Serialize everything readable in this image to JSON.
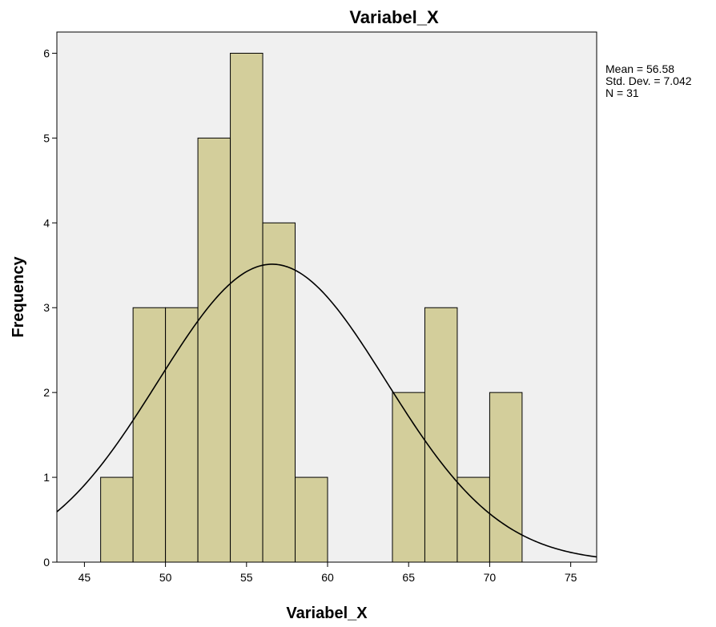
{
  "chart_data": {
    "type": "bar",
    "title": "Variabel_X",
    "xlabel": "Variabel_X",
    "ylabel": "Frequency",
    "xlim": [
      43.3,
      76.6
    ],
    "ylim": [
      0,
      6.25
    ],
    "x_ticks": [
      45,
      50,
      55,
      60,
      65,
      70,
      75
    ],
    "y_ticks": [
      0,
      1,
      2,
      3,
      4,
      5,
      6
    ],
    "bins": [
      {
        "start": 46,
        "end": 48,
        "value": 1
      },
      {
        "start": 48,
        "end": 50,
        "value": 3
      },
      {
        "start": 50,
        "end": 52,
        "value": 3
      },
      {
        "start": 52,
        "end": 54,
        "value": 5
      },
      {
        "start": 54,
        "end": 56,
        "value": 6
      },
      {
        "start": 56,
        "end": 58,
        "value": 4
      },
      {
        "start": 58,
        "end": 60,
        "value": 1
      },
      {
        "start": 64,
        "end": 66,
        "value": 2
      },
      {
        "start": 66,
        "end": 68,
        "value": 3
      },
      {
        "start": 68,
        "end": 70,
        "value": 1
      },
      {
        "start": 70,
        "end": 72,
        "value": 2
      }
    ],
    "normal_curve": {
      "mean": 56.58,
      "std": 7.042,
      "n": 31,
      "bin_width": 2
    },
    "stats": [
      "Mean = 56.58",
      "Std. Dev. = 7.042",
      "N = 31"
    ],
    "colors": {
      "bar_fill": "#d3ce9b",
      "bar_stroke": "#000000",
      "plot_bg": "#f0f0f0",
      "curve": "#000000"
    },
    "grid": false,
    "legend": "none"
  }
}
